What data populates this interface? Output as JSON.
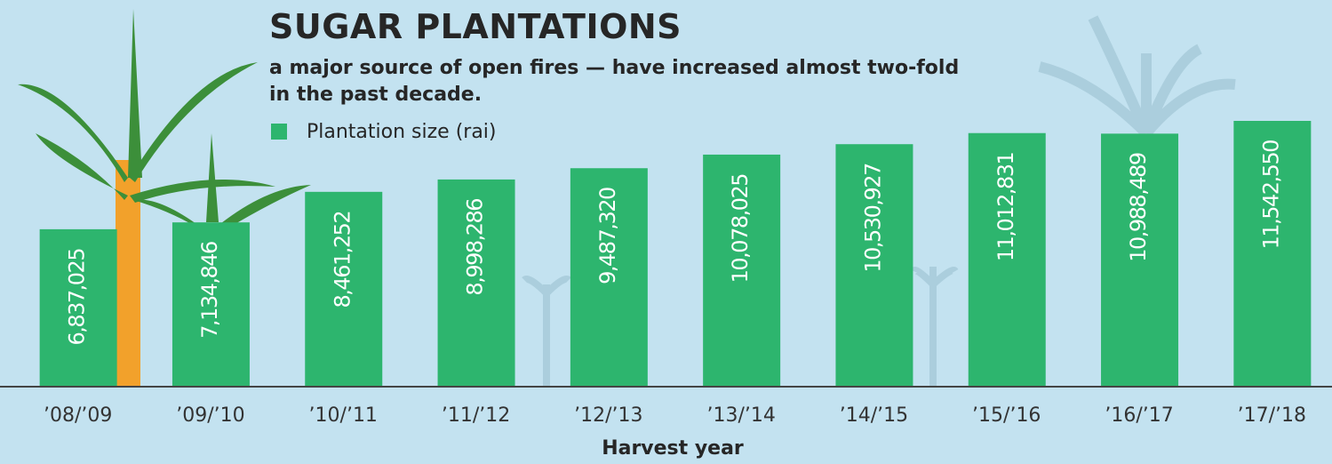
{
  "chart_data": {
    "type": "bar",
    "title": "SUGAR PLANTATIONS",
    "subtitle": "a major source of open fires — have increased almost two-fold in the past decade.",
    "x_label": "Harvest year",
    "categories": [
      "’08/’09",
      "’09/’10",
      "’10/’11",
      "’11/’12",
      "’12/’13",
      "’13/’14",
      "’14/’15",
      "’15/’16",
      "’16/’17",
      "’17/’18"
    ],
    "series": [
      {
        "name": "Plantation size (rai)",
        "color": "#2db56e",
        "values": [
          6837025,
          7134846,
          8461252,
          8998286,
          9487320,
          10078025,
          10530927,
          11012831,
          10988489,
          11542550
        ],
        "value_labels": [
          "6,837,025",
          "7,134,846",
          "8,461,252",
          "8,998,286",
          "9,487,320",
          "10,078,025",
          "10,530,927",
          "11,012,831",
          "10,988,489",
          "11,542,550"
        ]
      }
    ]
  }
}
